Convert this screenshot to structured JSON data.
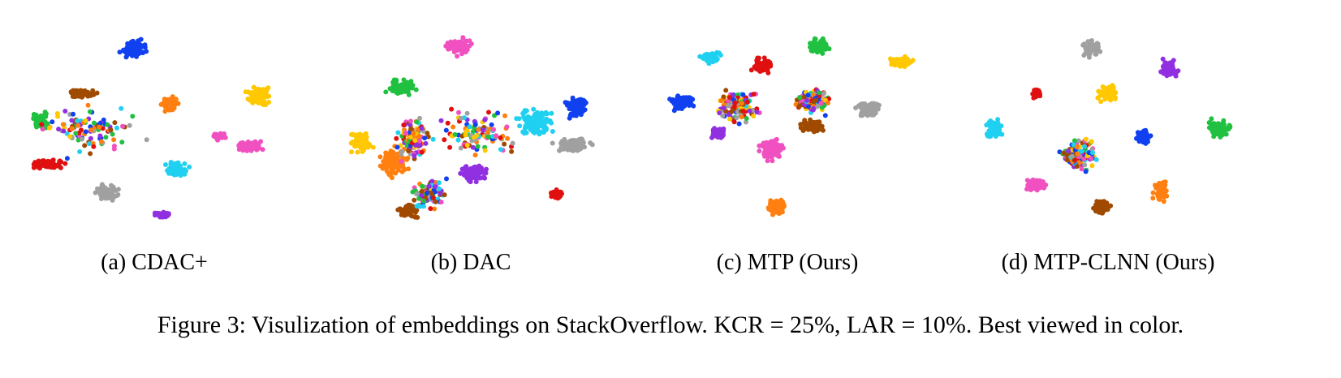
{
  "panels": [
    {
      "label": "(a) CDAC+"
    },
    {
      "label": "(b) DAC"
    },
    {
      "label": "(c) MTP (Ours)"
    },
    {
      "label": "(d) MTP-CLNN (Ours)"
    }
  ],
  "caption": "Figure 3: Visulization of embeddings on StackOverflow. KCR = 25%, LAR = 10%. Best viewed in color."
}
